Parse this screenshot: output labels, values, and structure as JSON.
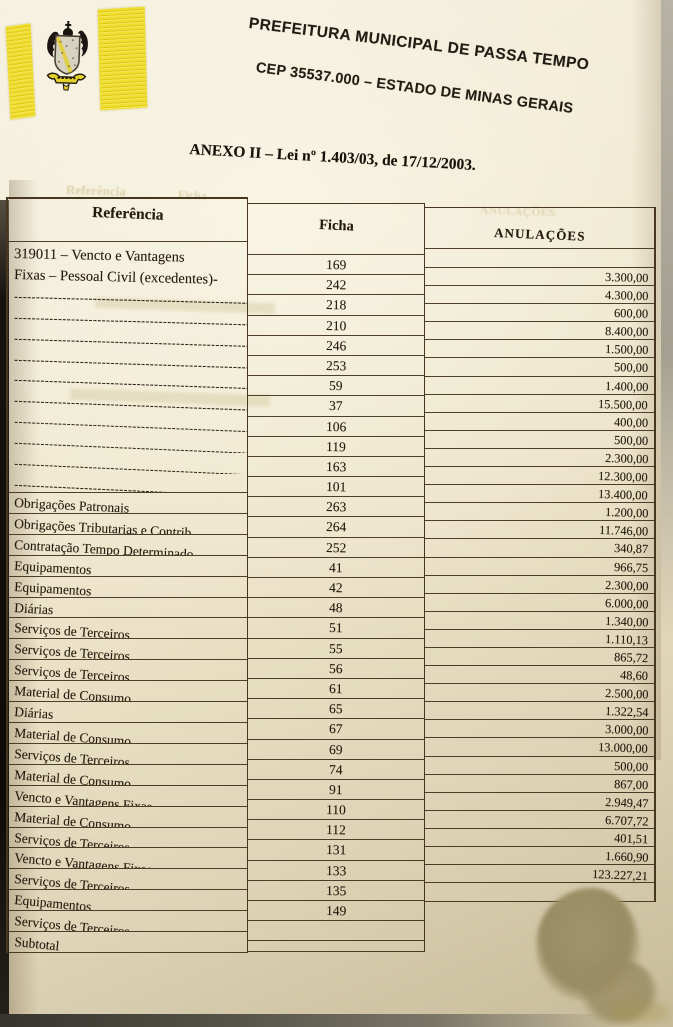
{
  "photo_header": {
    "line1": "PREFEITURA MUNICIPAL DE PASSA TEMPO",
    "line2": "CEP 35537.000 – ESTADO DE MINAS GERAIS",
    "anexo": "ANEXO II – Lei nº 1.403/03, de 17/12/2003."
  },
  "ghost_bleedthrough": {
    "referencia": "Referência",
    "ficha": "Ficha",
    "anulacoes": "ANULAÇÕES"
  },
  "logo": {
    "crest": "passa-tempo-municipal-coat-of-arms",
    "flag_yellow": "#ecd72a"
  },
  "table": {
    "headers": {
      "referencia": "Referência",
      "ficha": "Ficha",
      "anulacoes": "ANULAÇÕES"
    },
    "dash_fill": "--------------------------------------------------------------------",
    "rows": [
      {
        "referencia": "319011 – Vencto e Vantagens",
        "dashed": false,
        "ficha": "169",
        "anulacao": "3.300,00"
      },
      {
        "referencia": "Fixas – Pessoal Civil (excedentes)-",
        "dashed": false,
        "ficha": "242",
        "anulacao": "4.300,00"
      },
      {
        "referencia": "",
        "dashed": true,
        "ficha": "218",
        "anulacao": "600,00"
      },
      {
        "referencia": "",
        "dashed": true,
        "ficha": "210",
        "anulacao": "8.400,00"
      },
      {
        "referencia": "",
        "dashed": true,
        "ficha": "246",
        "anulacao": "1.500,00"
      },
      {
        "referencia": "",
        "dashed": true,
        "ficha": "253",
        "anulacao": "500,00"
      },
      {
        "referencia": "",
        "dashed": true,
        "ficha": "59",
        "anulacao": "1.400,00"
      },
      {
        "referencia": "",
        "dashed": true,
        "ficha": "37",
        "anulacao": "15.500,00"
      },
      {
        "referencia": "",
        "dashed": true,
        "ficha": "106",
        "anulacao": "400,00"
      },
      {
        "referencia": "",
        "dashed": true,
        "ficha": "119",
        "anulacao": "500,00"
      },
      {
        "referencia": "",
        "dashed": true,
        "ficha": "163",
        "anulacao": "2.300,00"
      },
      {
        "referencia": "",
        "dashed": true,
        "ficha": "101",
        "anulacao": "12.300,00"
      },
      {
        "referencia": "Obrigações Patronais",
        "dashed": false,
        "ficha": "263",
        "anulacao": "13.400,00"
      },
      {
        "referencia": "Obrigações Tributarias e Contrib.",
        "dashed": false,
        "ficha": "264",
        "anulacao": "1.200,00"
      },
      {
        "referencia": "Contratação Tempo Determinado",
        "dashed": false,
        "ficha": "252",
        "anulacao": "11.746,00"
      },
      {
        "referencia": "Equipamentos",
        "dashed": false,
        "ficha": "41",
        "anulacao": "340,87"
      },
      {
        "referencia": "Equipamentos",
        "dashed": false,
        "ficha": "42",
        "anulacao": "966,75"
      },
      {
        "referencia": "Diárias",
        "dashed": false,
        "ficha": "48",
        "anulacao": "2.300,00"
      },
      {
        "referencia": "Serviços de Terceiros",
        "dashed": false,
        "ficha": "51",
        "anulacao": "6.000,00"
      },
      {
        "referencia": "Serviços de Terceiros",
        "dashed": false,
        "ficha": "55",
        "anulacao": "1.340,00"
      },
      {
        "referencia": "Serviços de Terceiros",
        "dashed": false,
        "ficha": "56",
        "anulacao": "1.110,13"
      },
      {
        "referencia": "Material de Consumo",
        "dashed": false,
        "ficha": "61",
        "anulacao": "865,72"
      },
      {
        "referencia": "Diárias",
        "dashed": false,
        "ficha": "65",
        "anulacao": "48,60"
      },
      {
        "referencia": "Material de Consumo",
        "dashed": false,
        "ficha": "67",
        "anulacao": "2.500,00"
      },
      {
        "referencia": "Serviços de Terceiros",
        "dashed": false,
        "ficha": "69",
        "anulacao": "1.322,54"
      },
      {
        "referencia": "Material de Consumo",
        "dashed": false,
        "ficha": "74",
        "anulacao": "3.000,00"
      },
      {
        "referencia": "Vencto e Vantagens Fixas",
        "dashed": false,
        "ficha": "91",
        "anulacao": "13.000,00"
      },
      {
        "referencia": "Material de Consumo",
        "dashed": false,
        "ficha": "110",
        "anulacao": "500,00"
      },
      {
        "referencia": "Serviços de Terceiros",
        "dashed": false,
        "ficha": "112",
        "anulacao": "867,00"
      },
      {
        "referencia": "Vencto e Vantagens Fixas",
        "dashed": false,
        "ficha": "131",
        "anulacao": "2.949,47"
      },
      {
        "referencia": "Serviços de Terceiros",
        "dashed": false,
        "ficha": "133",
        "anulacao": "6.707,72"
      },
      {
        "referencia": "Equipamentos",
        "dashed": false,
        "ficha": "135",
        "anulacao": "401,51"
      },
      {
        "referencia": "Serviços de Terceiros",
        "dashed": false,
        "ficha": "149",
        "anulacao": "1.660,90"
      },
      {
        "referencia": "Subtotal",
        "dashed": false,
        "ficha": "",
        "anulacao": "123.227,21"
      }
    ]
  }
}
